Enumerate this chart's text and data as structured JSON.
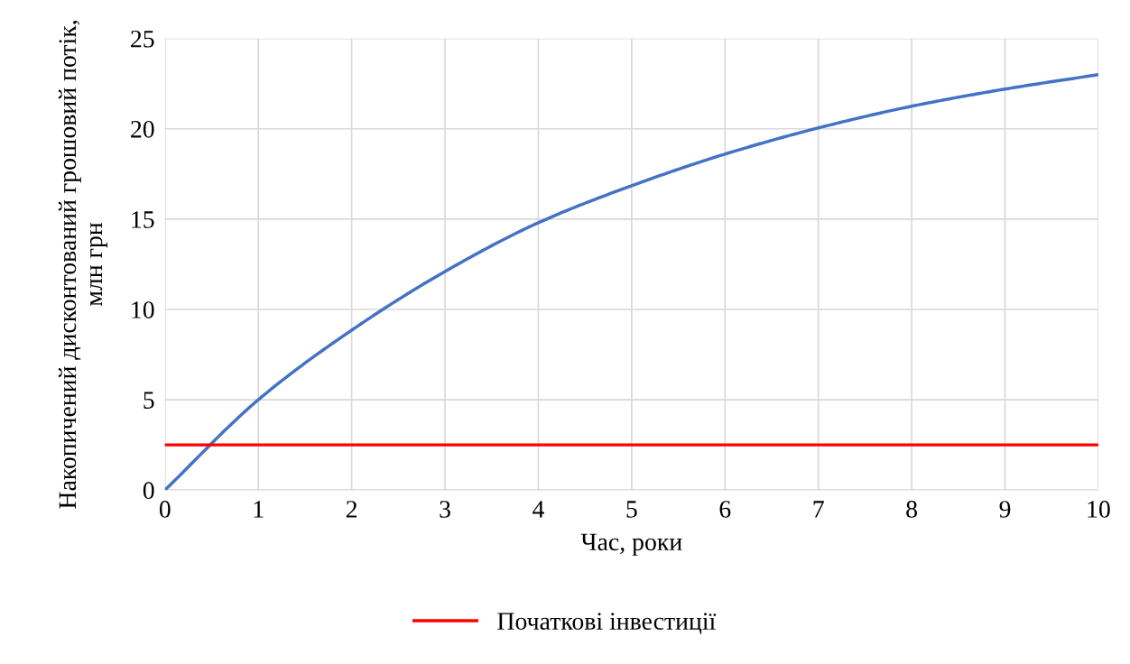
{
  "chart_data": {
    "type": "line",
    "xlabel": "Час, роки",
    "ylabel": "Накопичений дисконтований грошовий потік, млн грн",
    "x": [
      0,
      1,
      2,
      3,
      4,
      5,
      6,
      7,
      8,
      9,
      10
    ],
    "series": [
      {
        "color": "#4472c4",
        "values": [
          0,
          5.0,
          8.85,
          12.1,
          14.8,
          16.85,
          18.6,
          20.05,
          21.25,
          22.2,
          23.0
        ]
      },
      {
        "name": "Початкові інвестиції",
        "color": "#ff0000",
        "values": [
          2.5,
          2.5,
          2.5,
          2.5,
          2.5,
          2.5,
          2.5,
          2.5,
          2.5,
          2.5,
          2.5
        ]
      }
    ],
    "xlim": [
      0,
      10
    ],
    "xticks": [
      0,
      1,
      2,
      3,
      4,
      5,
      6,
      7,
      8,
      9,
      10
    ],
    "ylim": [
      0,
      25
    ],
    "yticks": [
      0,
      5,
      10,
      15,
      20,
      25
    ],
    "grid": true,
    "legend": "bottom",
    "marker": "none",
    "line_style": "solid"
  }
}
